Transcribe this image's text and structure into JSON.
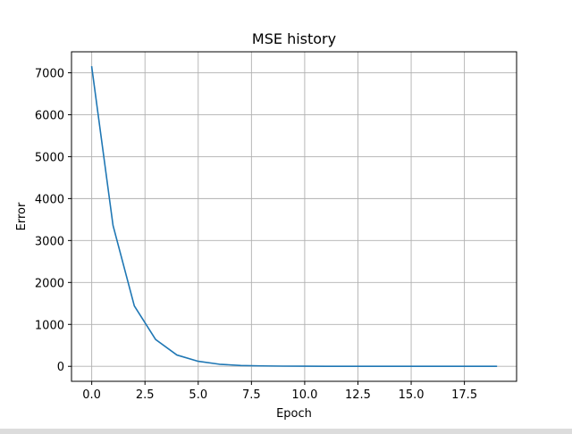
{
  "chart_data": {
    "type": "line",
    "title": "MSE history",
    "xlabel": "Epoch",
    "ylabel": "Error",
    "xlim": [
      -0.95,
      19.95
    ],
    "ylim": [
      -357,
      7500
    ],
    "xticks": [
      0.0,
      2.5,
      5.0,
      7.5,
      10.0,
      12.5,
      15.0,
      17.5
    ],
    "xtick_labels": [
      "0.0",
      "2.5",
      "5.0",
      "7.5",
      "10.0",
      "12.5",
      "15.0",
      "17.5"
    ],
    "yticks": [
      0,
      1000,
      2000,
      3000,
      4000,
      5000,
      6000,
      7000
    ],
    "ytick_labels": [
      "0",
      "1000",
      "2000",
      "3000",
      "4000",
      "5000",
      "6000",
      "7000"
    ],
    "grid": true,
    "series": [
      {
        "color": "#1f77b4",
        "x": [
          0,
          1,
          2,
          3,
          4,
          5,
          6,
          7,
          8,
          9,
          10,
          11,
          12,
          13,
          14,
          15,
          16,
          17,
          18,
          19
        ],
        "values": [
          7140,
          3360,
          1440,
          640,
          270,
          120,
          50,
          20,
          10,
          5,
          3,
          2,
          1,
          1,
          0,
          0,
          0,
          0,
          0,
          0
        ]
      }
    ]
  }
}
